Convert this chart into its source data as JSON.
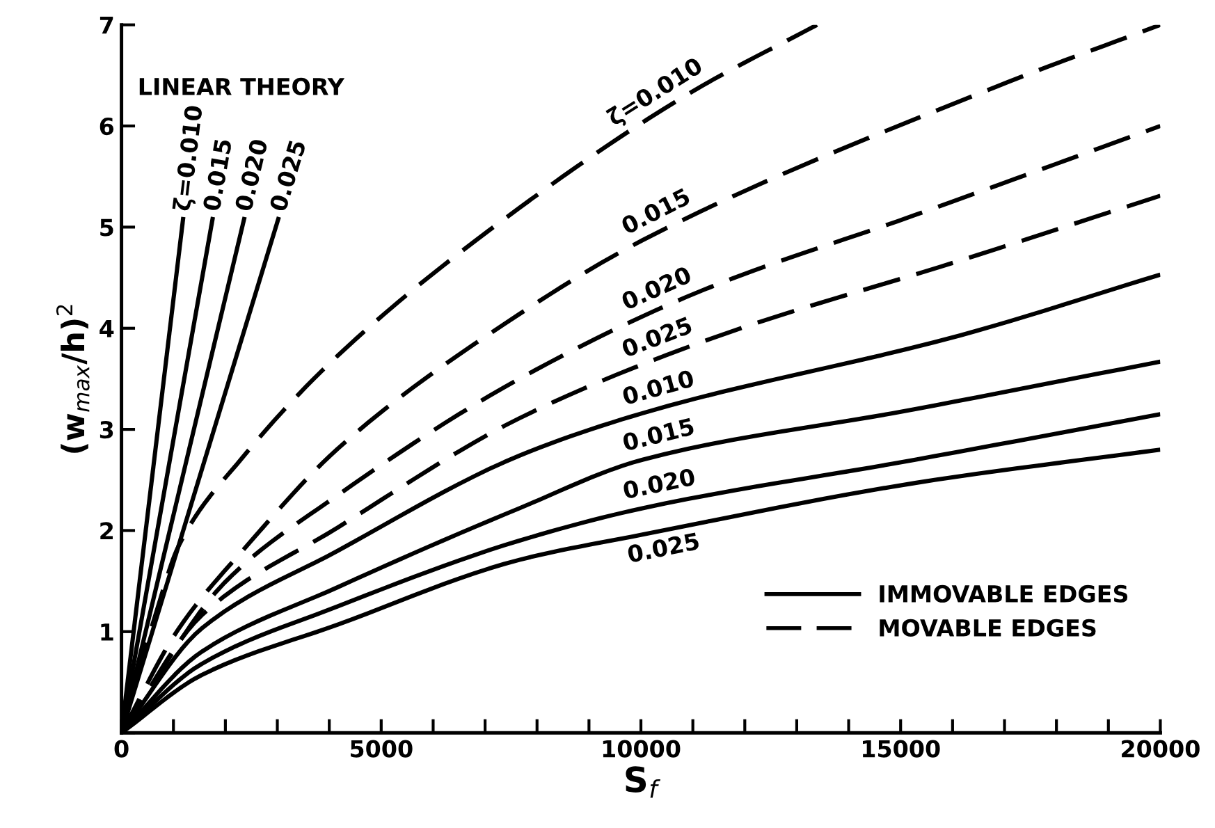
{
  "chart_data": {
    "type": "line",
    "xlabel": "S$_{f}$",
    "ylabel": "(w$_{max}$/h)$^{2}$",
    "xlim": [
      0,
      20000
    ],
    "ylim": [
      0,
      7
    ],
    "xticks": [
      0,
      {
        "value": 1000,
        "label": null
      },
      {
        "value": 2000,
        "label": null
      },
      {
        "value": 3000,
        "label": null
      },
      {
        "value": 4000,
        "label": null
      },
      5000,
      {
        "value": 6000,
        "label": null
      },
      {
        "value": 7000,
        "label": null
      },
      {
        "value": 8000,
        "label": null
      },
      {
        "value": 9000,
        "label": null
      },
      10000,
      {
        "value": 11000,
        "label": null
      },
      {
        "value": 12000,
        "label": null
      },
      {
        "value": 13000,
        "label": null
      },
      {
        "value": 14000,
        "label": null
      },
      15000,
      {
        "value": 16000,
        "label": null
      },
      {
        "value": 17000,
        "label": null
      },
      {
        "value": 18000,
        "label": null
      },
      {
        "value": 19000,
        "label": null
      },
      20000
    ],
    "yticks": [
      {
        "value": 0,
        "label": null
      },
      1,
      2,
      3,
      4,
      5,
      6,
      7
    ],
    "grid": false,
    "marker": "none",
    "series": [
      {
        "name": "ζ=0.010",
        "color": "#000000",
        "line_style": "solid",
        "x": [
          0,
          1190
        ],
        "values": [
          0,
          5.1
        ]
      },
      {
        "name": "0.015",
        "color": "#000000",
        "line_style": "solid",
        "x": [
          0,
          1760
        ],
        "values": [
          0,
          5.1
        ]
      },
      {
        "name": "0.020",
        "color": "#000000",
        "line_style": "solid",
        "x": [
          0,
          2370
        ],
        "values": [
          0,
          5.1
        ]
      },
      {
        "name": "0.025",
        "color": "#000000",
        "line_style": "solid",
        "x": [
          0,
          3030
        ],
        "values": [
          0,
          5.1
        ]
      },
      {
        "name": "0.010",
        "color": "#000000",
        "line_style": "solid",
        "x": [
          0,
          1540,
          4165,
          7660,
          10030,
          16150,
          20000
        ],
        "values": [
          0,
          1.03,
          1.8,
          2.74,
          3.16,
          3.93,
          4.53
        ]
      },
      {
        "name": "0.015",
        "color": "#000000",
        "line_style": "solid",
        "x": [
          0,
          1540,
          4165,
          7660,
          10030,
          15280,
          20000
        ],
        "values": [
          0,
          0.8,
          1.44,
          2.22,
          2.7,
          3.2,
          3.67
        ]
      },
      {
        "name": "0.020",
        "color": "#000000",
        "line_style": "solid",
        "x": [
          0,
          1540,
          4165,
          7660,
          10030,
          15280,
          20000
        ],
        "values": [
          0,
          0.68,
          1.25,
          1.9,
          2.22,
          2.7,
          3.15
        ]
      },
      {
        "name": "0.025",
        "color": "#000000",
        "line_style": "solid",
        "x": [
          0,
          1540,
          4165,
          7660,
          10030,
          15280,
          20000
        ],
        "values": [
          0,
          0.57,
          1.07,
          1.71,
          1.96,
          2.47,
          2.8
        ]
      },
      {
        "name": "ζ=0.010",
        "color": "#000000",
        "line_style": "dashed",
        "x": [
          0,
          656,
          1102,
          2327,
          4165,
          7660,
          10990,
          13390
        ],
        "values": [
          0,
          1.17,
          1.85,
          2.72,
          3.73,
          5.19,
          6.34,
          7.0
        ]
      },
      {
        "name": "0.015",
        "color": "#000000",
        "line_style": "dashed",
        "x": [
          0,
          1102,
          2415,
          4165,
          7660,
          10030,
          16800,
          20000
        ],
        "values": [
          0,
          1.03,
          1.85,
          2.81,
          4.14,
          4.87,
          6.38,
          7.0
        ]
      },
      {
        "name": "0.020",
        "color": "#000000",
        "line_style": "dashed",
        "x": [
          0,
          1976,
          4165,
          7660,
          11160,
          15280,
          20000
        ],
        "values": [
          0,
          1.48,
          2.35,
          3.5,
          4.37,
          5.12,
          6.0
        ]
      },
      {
        "name": "0.025",
        "color": "#000000",
        "line_style": "dashed",
        "x": [
          0,
          1540,
          4165,
          7660,
          11420,
          16150,
          20000
        ],
        "values": [
          0,
          1.16,
          2.03,
          3.11,
          3.91,
          4.67,
          5.31
        ]
      }
    ],
    "annotations": [
      "LINEAR THEORY",
      "IMMOVABLE EDGES",
      "MOVABLE EDGES"
    ]
  }
}
